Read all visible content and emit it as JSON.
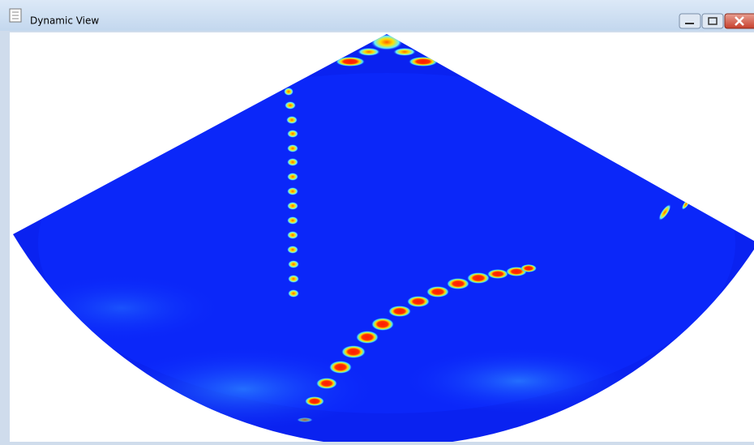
{
  "window": {
    "title": "Dynamic View"
  }
}
